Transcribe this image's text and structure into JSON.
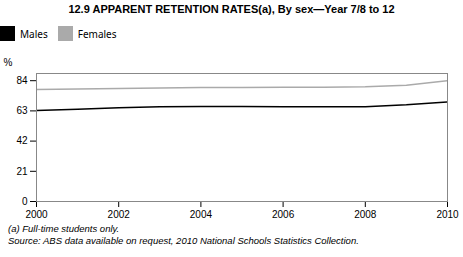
{
  "chart_data": {
    "type": "line",
    "title": "12.9   APPARENT RETENTION RATES(a), By sex—Year 7/8 to 12",
    "x": [
      2000,
      2001,
      2002,
      2003,
      2004,
      2005,
      2006,
      2007,
      2008,
      2009,
      2010
    ],
    "series": [
      {
        "name": "Males",
        "color": "#000000",
        "values": [
          63.2,
          64.2,
          65.2,
          65.8,
          66.1,
          66.0,
          65.9,
          65.8,
          65.9,
          67.2,
          69.2
        ]
      },
      {
        "name": "Females",
        "color": "#aaaaaa",
        "values": [
          77.8,
          78.2,
          78.6,
          79.0,
          79.3,
          79.3,
          79.4,
          79.5,
          79.8,
          80.8,
          84.0
        ]
      }
    ],
    "ylabel": "%",
    "xlim": [
      2000,
      2010
    ],
    "xticks": [
      2000,
      2002,
      2004,
      2006,
      2008,
      2010
    ],
    "ylim": [
      0,
      89
    ],
    "yticks": [
      0,
      21,
      42,
      63,
      84
    ],
    "grid": false,
    "legend": "top",
    "annotations": [
      "(a) Full-time students only.",
      "Source: ABS data available on request, 2010 National Schools Statistics Collection."
    ]
  }
}
